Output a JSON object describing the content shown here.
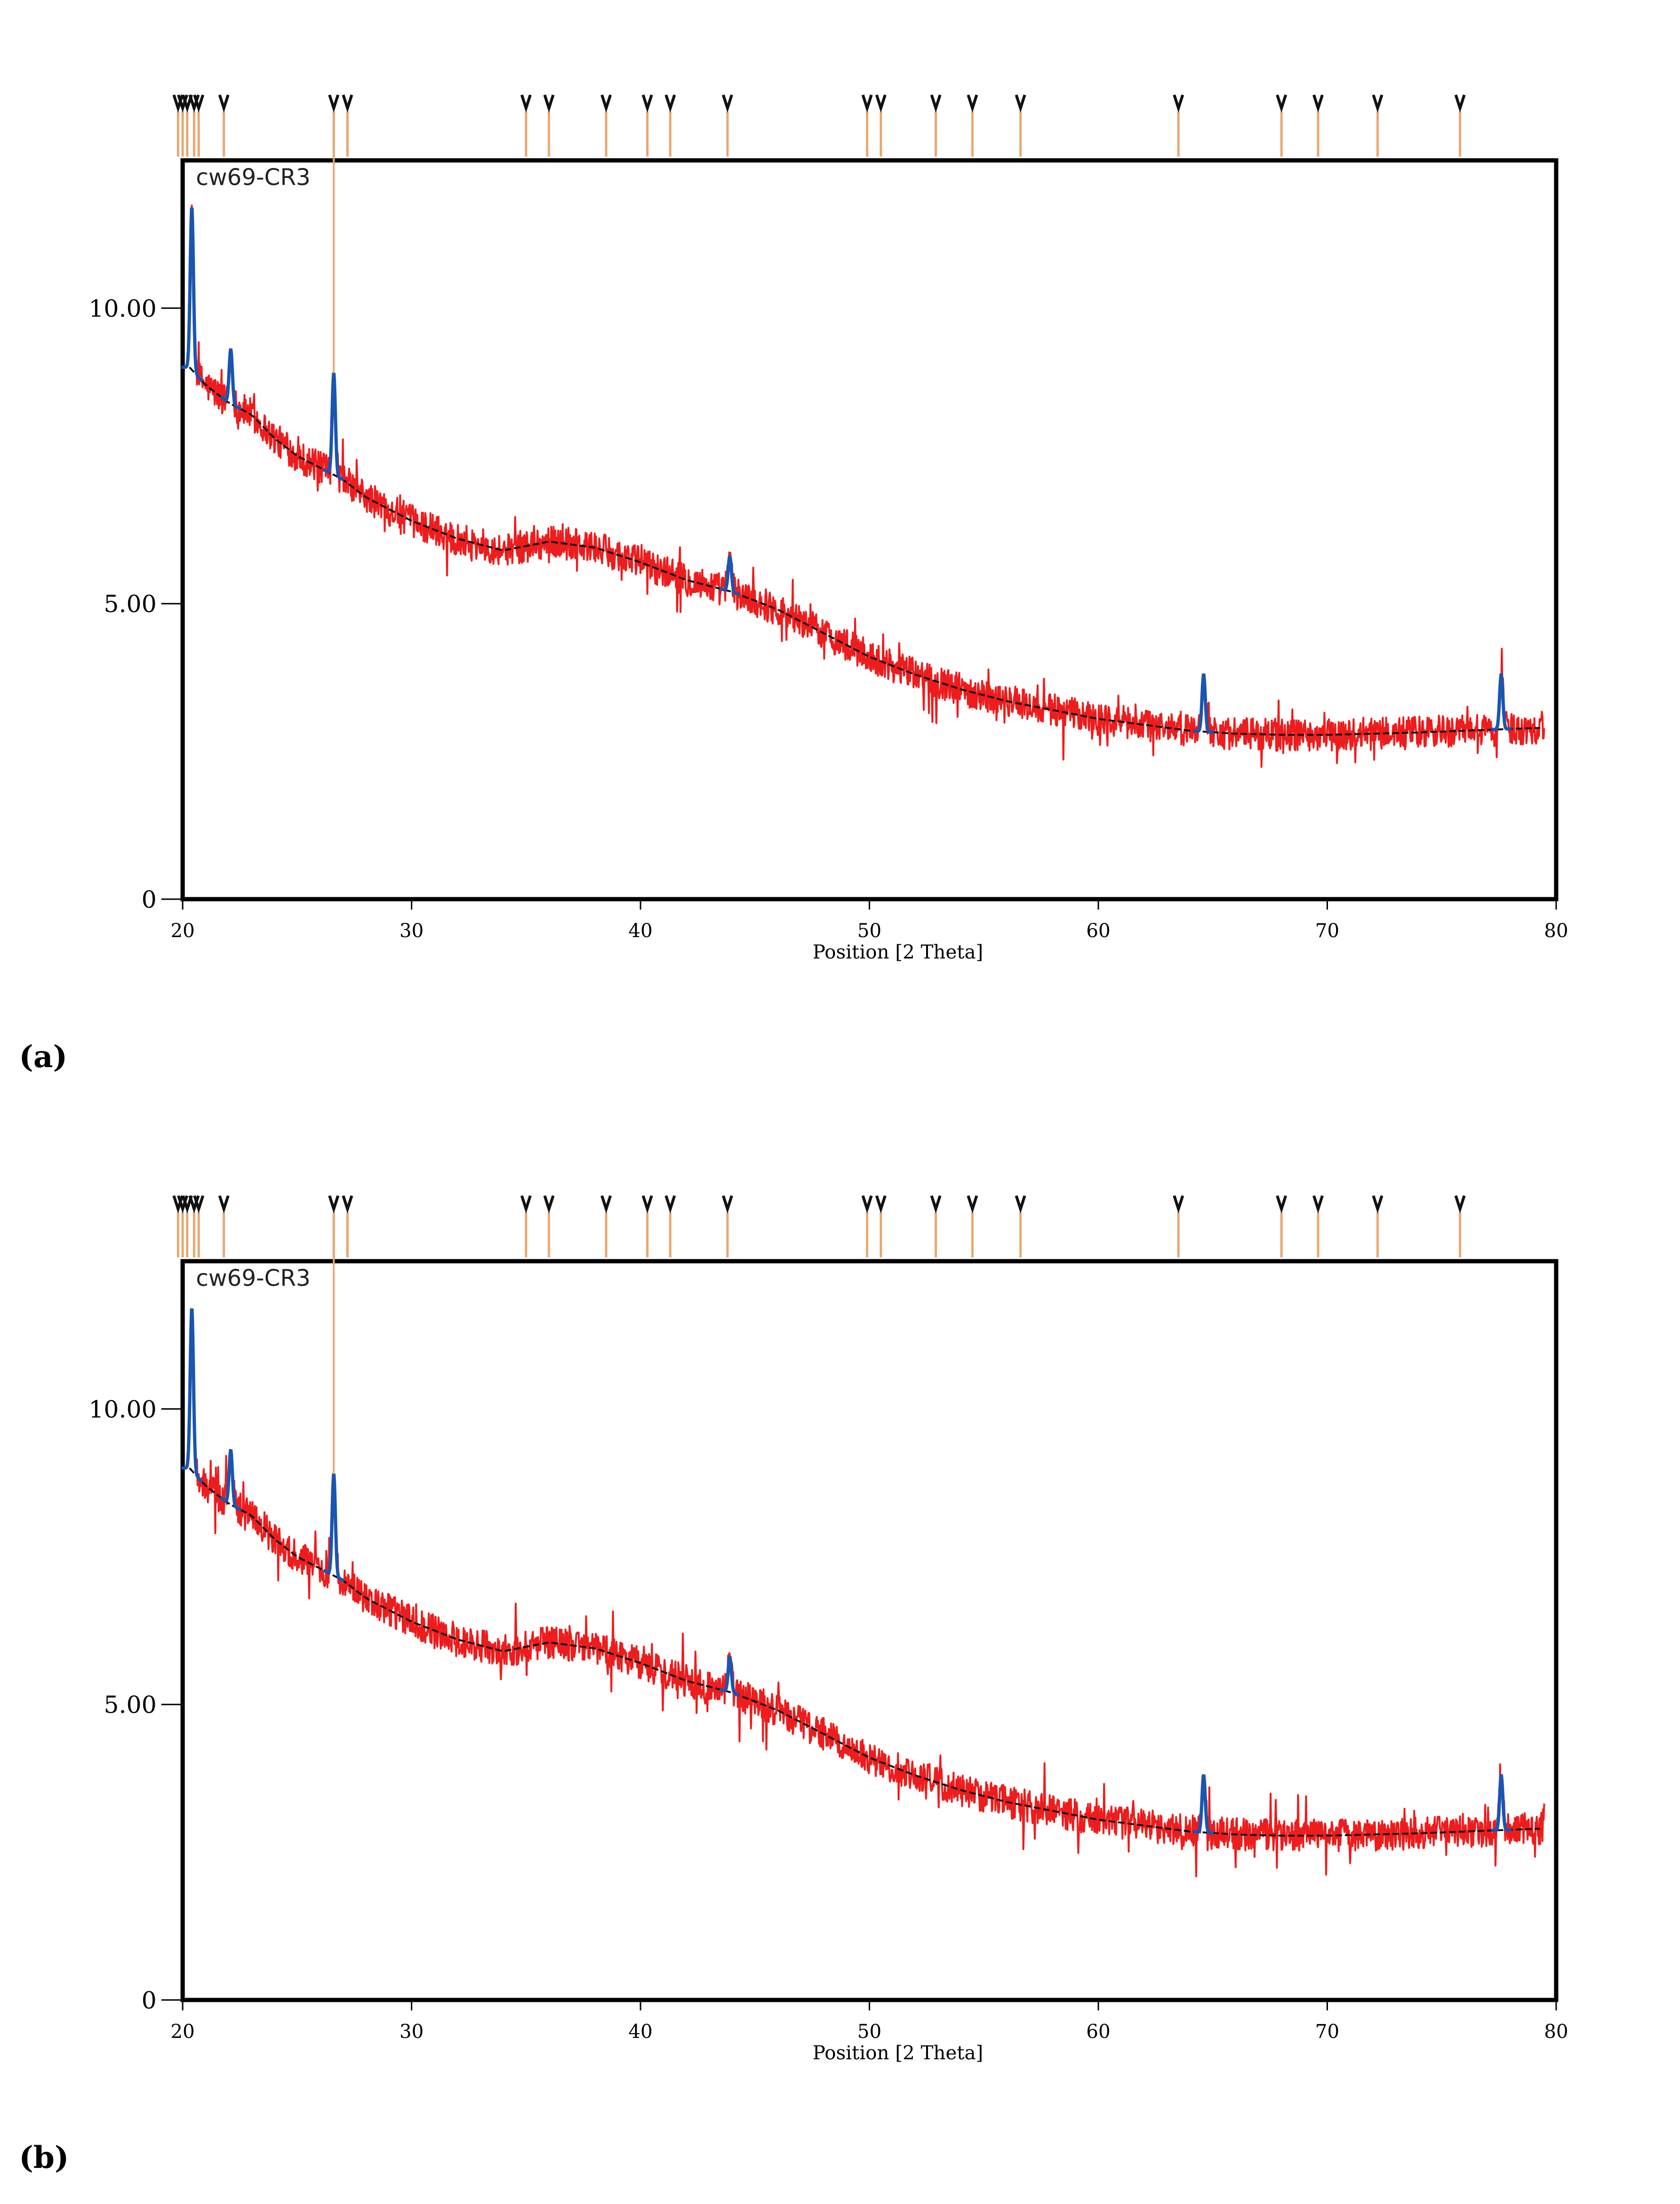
{
  "panels": [
    {
      "label": "(a)"
    },
    {
      "label": "(b)"
    }
  ],
  "colors": {
    "noisy_trace": "#ee1c1c",
    "fit_trace": "#111111",
    "peak_trace": "#1a55b0",
    "reference_lines": "#e8a870",
    "reference_markers": "#111111",
    "frame": "#000000"
  },
  "chart_data": [
    {
      "type": "line",
      "title": "cw69-CR3",
      "xlabel": "Position [2 Theta]",
      "ylabel": "",
      "xlim": [
        20,
        80
      ],
      "ylim": [
        0,
        12.5
      ],
      "x_ticks": [
        20,
        30,
        40,
        50,
        60,
        70,
        80
      ],
      "x_tick_labels": [
        "20",
        "30",
        "40",
        "50",
        "60",
        "70",
        "80"
      ],
      "y_ticks": [
        0,
        5,
        10
      ],
      "y_tick_labels": [
        "0",
        "5.00",
        "10.00"
      ],
      "grid": false,
      "background": {
        "x": [
          20.3,
          21,
          22,
          23,
          24,
          25,
          26,
          27,
          28,
          30,
          32,
          34,
          36,
          38,
          40,
          42,
          44,
          46,
          48,
          50,
          52,
          54,
          56,
          58,
          60,
          62,
          64,
          66,
          68,
          70,
          72,
          74,
          76,
          78,
          79.5
        ],
        "y": [
          9.0,
          8.7,
          8.4,
          8.2,
          7.8,
          7.5,
          7.3,
          7.1,
          6.8,
          6.4,
          6.1,
          5.9,
          6.05,
          5.95,
          5.7,
          5.4,
          5.2,
          4.9,
          4.5,
          4.1,
          3.8,
          3.55,
          3.35,
          3.2,
          3.05,
          2.95,
          2.85,
          2.8,
          2.78,
          2.78,
          2.8,
          2.82,
          2.85,
          2.88,
          2.9
        ]
      },
      "peaks": [
        {
          "x": 20.4,
          "y": 11.7
        },
        {
          "x": 22.1,
          "y": 9.3
        },
        {
          "x": 26.6,
          "y": 8.9
        },
        {
          "x": 43.9,
          "y": 5.8
        },
        {
          "x": 64.6,
          "y": 3.8
        },
        {
          "x": 77.6,
          "y": 3.8
        }
      ],
      "reference_positions": [
        19.8,
        20.0,
        20.2,
        20.5,
        20.7,
        21.8,
        26.6,
        27.2,
        35.0,
        36.0,
        38.5,
        40.3,
        41.3,
        43.8,
        49.9,
        50.5,
        52.9,
        54.5,
        56.6,
        63.5,
        68.0,
        69.6,
        72.2,
        75.8
      ]
    },
    {
      "type": "line",
      "title": "cw69-CR3",
      "xlabel": "Position [2 Theta]",
      "ylabel": "",
      "xlim": [
        20,
        80
      ],
      "ylim": [
        0,
        12.5
      ],
      "x_ticks": [
        20,
        30,
        40,
        50,
        60,
        70,
        80
      ],
      "x_tick_labels": [
        "20",
        "30",
        "40",
        "50",
        "60",
        "70",
        "80"
      ],
      "y_ticks": [
        0,
        5,
        10
      ],
      "y_tick_labels": [
        "0",
        "5.00",
        "10.00"
      ],
      "grid": false,
      "background": {
        "x": [
          20.3,
          21,
          22,
          23,
          24,
          25,
          26,
          27,
          28,
          30,
          32,
          34,
          36,
          38,
          40,
          42,
          44,
          46,
          48,
          50,
          52,
          54,
          56,
          58,
          60,
          62,
          64,
          66,
          68,
          70,
          72,
          74,
          76,
          78,
          79.5
        ],
        "y": [
          9.0,
          8.7,
          8.4,
          8.2,
          7.8,
          7.5,
          7.3,
          7.1,
          6.8,
          6.4,
          6.1,
          5.9,
          6.05,
          5.95,
          5.7,
          5.4,
          5.2,
          4.9,
          4.5,
          4.1,
          3.8,
          3.55,
          3.35,
          3.2,
          3.05,
          2.95,
          2.85,
          2.8,
          2.78,
          2.78,
          2.8,
          2.82,
          2.85,
          2.88,
          2.9
        ]
      },
      "peaks": [
        {
          "x": 20.4,
          "y": 11.7
        },
        {
          "x": 22.1,
          "y": 9.3
        },
        {
          "x": 26.6,
          "y": 8.9
        },
        {
          "x": 43.9,
          "y": 5.8
        },
        {
          "x": 64.6,
          "y": 3.8
        },
        {
          "x": 77.6,
          "y": 3.8
        }
      ],
      "reference_positions": [
        19.8,
        20.0,
        20.2,
        20.5,
        20.7,
        21.8,
        26.6,
        27.2,
        35.0,
        36.0,
        38.5,
        40.3,
        41.3,
        43.8,
        49.9,
        50.5,
        52.9,
        54.5,
        56.6,
        63.5,
        68.0,
        69.6,
        72.2,
        75.8
      ]
    }
  ]
}
